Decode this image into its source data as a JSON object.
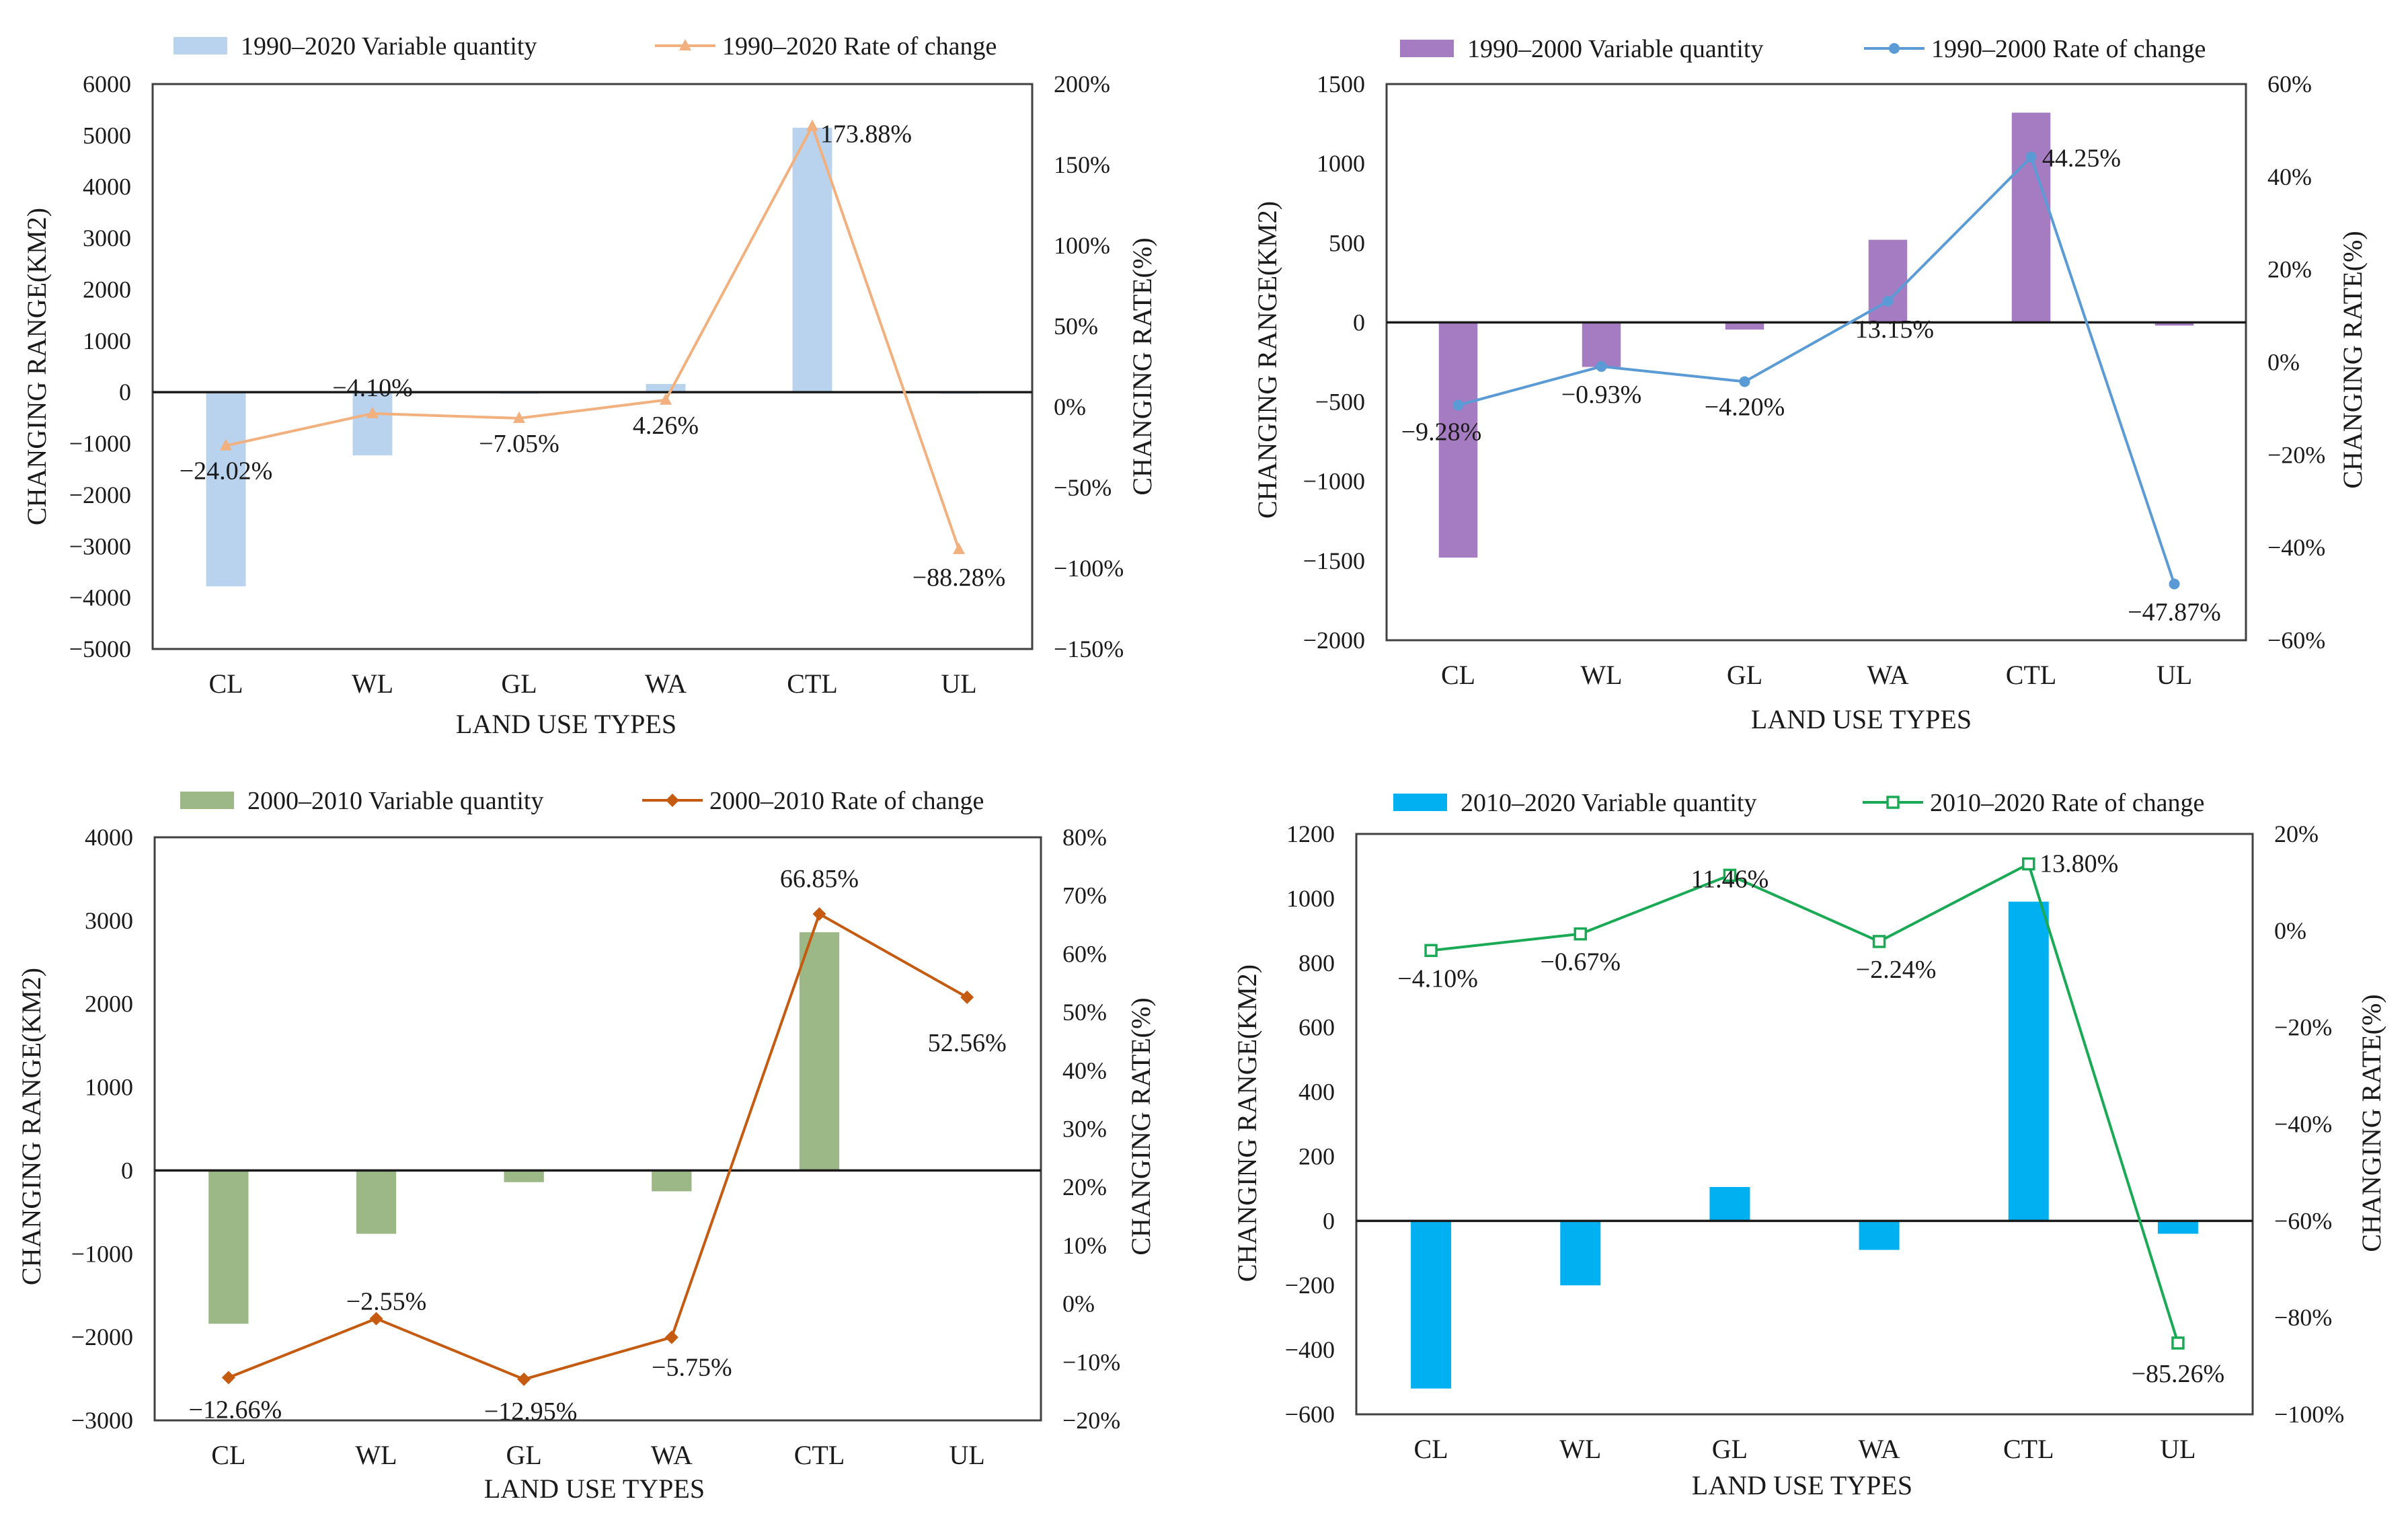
{
  "chart_data": [
    {
      "type": "bar+line",
      "panel": "top-left",
      "colors": {
        "bar": "#b9d3ee",
        "line": "#f2b07e"
      },
      "marker": "triangle",
      "legend": {
        "bar": "1990–2020 Variable quantity",
        "line": "1990–2020 Rate of change"
      },
      "categories": [
        "CL",
        "WL",
        "GL",
        "WA",
        "CTL",
        "UL"
      ],
      "bar_values": [
        -3780,
        -1230,
        -30,
        160,
        5150,
        -30
      ],
      "line_values": [
        -24.02,
        -4.1,
        -7.05,
        4.26,
        173.88,
        -88.28
      ],
      "data_labels": [
        "−24.02%",
        "−4.10%",
        "−7.05%",
        "4.26%",
        "173.88%",
        "−88.28%"
      ],
      "ylim_left": [
        -5000,
        6000
      ],
      "yticks_left": [
        "−5000",
        "−4000",
        "−3000",
        "−2000",
        "−1000",
        "0",
        "1000",
        "2000",
        "3000",
        "4000",
        "5000",
        "6000"
      ],
      "ylim_right": [
        -150,
        200
      ],
      "yticks_right": [
        "−150%",
        "−100%",
        "−50%",
        "0%",
        "50%",
        "100%",
        "150%",
        "200%"
      ],
      "xlabel": "LAND USE TYPES",
      "ylabel_left": "CHANGING RANGE(KM2)",
      "ylabel_right": "CHANGING RATE(%)"
    },
    {
      "type": "bar+line",
      "panel": "top-right",
      "colors": {
        "bar": "#a57cc1",
        "line": "#5b9bd5"
      },
      "marker": "circle",
      "legend": {
        "bar": "1990–2000 Variable quantity",
        "line": "1990–2000 Rate of change"
      },
      "categories": [
        "CL",
        "WL",
        "GL",
        "WA",
        "CTL",
        "UL"
      ],
      "bar_values": [
        -1480,
        -280,
        -45,
        520,
        1320,
        -20
      ],
      "line_values": [
        -9.28,
        -0.93,
        -4.2,
        13.15,
        44.25,
        -47.87
      ],
      "data_labels": [
        "−9.28%",
        "−0.93%",
        "−4.20%",
        "13.15%",
        "44.25%",
        "−47.87%"
      ],
      "ylim_left": [
        -2000,
        1500
      ],
      "yticks_left": [
        "−2000",
        "−1500",
        "−1000",
        "−500",
        "0",
        "500",
        "1000",
        "1500"
      ],
      "ylim_right": [
        -60,
        60
      ],
      "yticks_right": [
        "−60%",
        "−40%",
        "−20%",
        "0%",
        "20%",
        "40%",
        "60%"
      ],
      "xlabel": "LAND USE TYPES",
      "ylabel_left": "CHANGING RANGE(KM2)",
      "ylabel_right": "CHANGING RATE(%)"
    },
    {
      "type": "bar+line",
      "panel": "bottom-left",
      "colors": {
        "bar": "#9cb887",
        "line": "#c55a11"
      },
      "marker": "diamond",
      "legend": {
        "bar": "2000–2010 Variable quantity",
        "line": "2000–2010 Rate of change"
      },
      "categories": [
        "CL",
        "WL",
        "GL",
        "WA",
        "CTL",
        "UL"
      ],
      "bar_values": [
        -1840,
        -760,
        -140,
        -250,
        2860,
        0
      ],
      "line_values": [
        -12.66,
        -2.55,
        -12.95,
        -5.75,
        66.85,
        52.56
      ],
      "data_labels": [
        "−12.66%",
        "−2.55%",
        "−12.95%",
        "−5.75%",
        "66.85%",
        "52.56%"
      ],
      "ylim_left": [
        -3000,
        4000
      ],
      "yticks_left": [
        "−3000",
        "−2000",
        "−1000",
        "0",
        "1000",
        "2000",
        "3000",
        "4000"
      ],
      "ylim_right": [
        -20,
        80
      ],
      "yticks_right": [
        "−20%",
        "−10%",
        "0%",
        "10%",
        "20%",
        "30%",
        "40%",
        "50%",
        "60%",
        "70%",
        "80%"
      ],
      "xlabel": "LAND USE TYPES",
      "ylabel_left": "CHANGING RANGE(KM2)",
      "ylabel_right": "CHANGING RATE(%)"
    },
    {
      "type": "bar+line",
      "panel": "bottom-right",
      "colors": {
        "bar": "#00b0f0",
        "line": "#1aaa55"
      },
      "marker": "square",
      "legend": {
        "bar": "2010–2020 Variable quantity",
        "line": "2010–2020 Rate of change"
      },
      "categories": [
        "CL",
        "WL",
        "GL",
        "WA",
        "CTL",
        "UL"
      ],
      "bar_values": [
        -520,
        -200,
        105,
        -90,
        990,
        -40
      ],
      "line_values": [
        -4.1,
        -0.67,
        11.46,
        -2.24,
        13.8,
        -85.26
      ],
      "data_labels": [
        "−4.10%",
        "−0.67%",
        "11.46%",
        "−2.24%",
        "13.80%",
        "−85.26%"
      ],
      "ylim_left": [
        -600,
        1200
      ],
      "yticks_left": [
        "−600",
        "−400",
        "−200",
        "0",
        "200",
        "400",
        "600",
        "800",
        "1000",
        "1200"
      ],
      "ylim_right": [
        -100,
        20
      ],
      "yticks_right": [
        "−100%",
        "−80%",
        "−60%",
        "−40%",
        "−20%",
        "0%",
        "20%"
      ],
      "xlabel": "LAND USE TYPES",
      "ylabel_left": "CHANGING RANGE(KM2)",
      "ylabel_right": "CHANGING RATE(%)"
    }
  ]
}
